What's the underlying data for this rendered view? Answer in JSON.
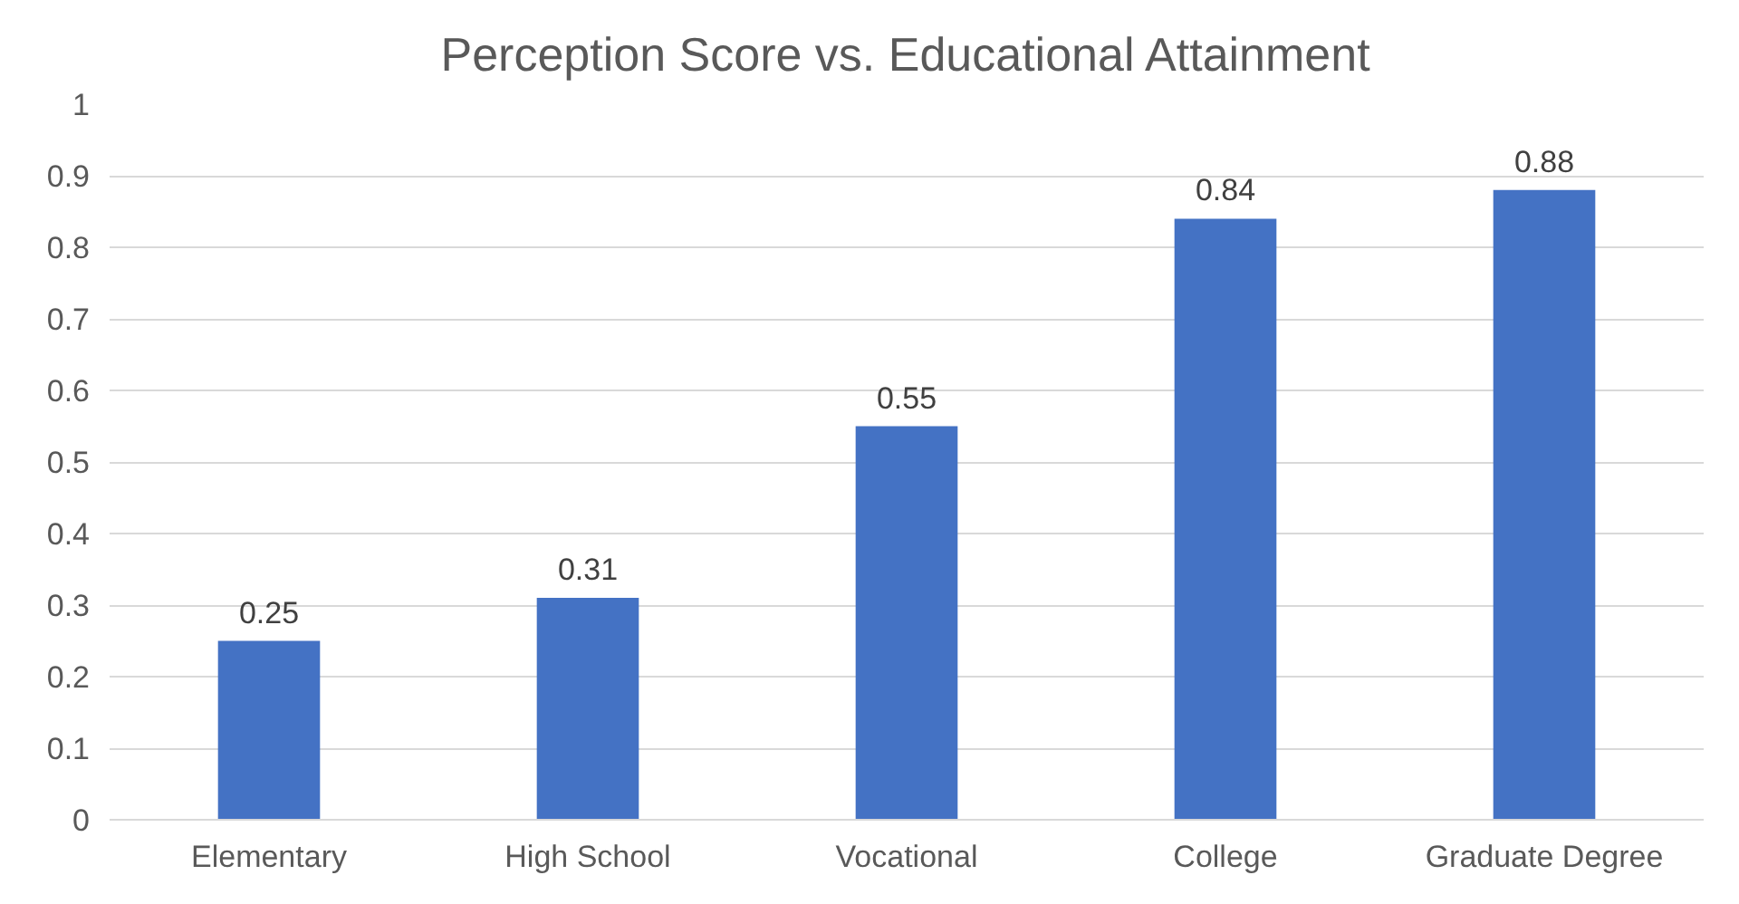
{
  "chart_data": {
    "type": "bar",
    "title": "Perception Score vs. Educational Attainment",
    "categories": [
      "Elementary",
      "High School",
      "Vocational",
      "College",
      "Graduate Degree"
    ],
    "values": [
      0.25,
      0.31,
      0.55,
      0.84,
      0.88
    ],
    "color": "#4472c4",
    "ylim": [
      0,
      1
    ],
    "yticks": [
      0,
      0.1,
      0.2,
      0.3,
      0.4,
      0.5,
      0.6,
      0.7,
      0.8,
      0.9,
      1
    ],
    "grid": "y",
    "data_labels": true
  }
}
